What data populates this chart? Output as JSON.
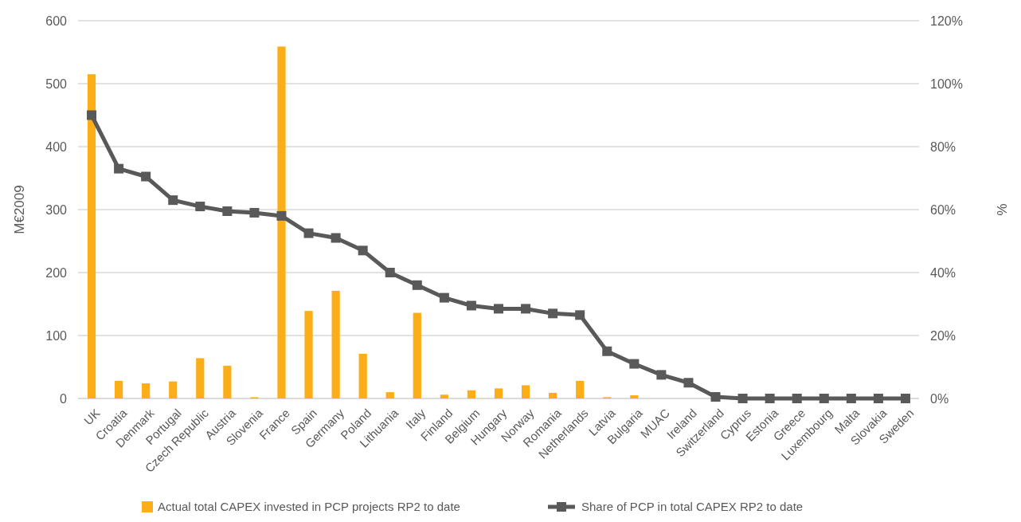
{
  "chart_data": {
    "type": "bar",
    "categories": [
      "UK",
      "Croatia",
      "Denmark",
      "Portugal",
      "Czech Republic",
      "Austria",
      "Slovenia",
      "France",
      "Spain",
      "Germany",
      "Poland",
      "Lithuania",
      "Italy",
      "Finland",
      "Belgium",
      "Hungary",
      "Norway",
      "Romania",
      "Netherlands",
      "Latvia",
      "Bulgaria",
      "MUAC",
      "Ireland",
      "Switzerland",
      "Cyprus",
      "Estonia",
      "Greece",
      "Luxembourg",
      "Malta",
      "Slovakia",
      "Sweden"
    ],
    "series": [
      {
        "name": "Actual total CAPEX invested in PCP projects RP2 to date",
        "color": "#fbae17",
        "values": [
          515,
          28,
          24,
          27,
          64,
          52,
          2,
          559,
          139,
          171,
          71,
          10,
          136,
          6,
          13,
          16,
          21,
          9,
          28,
          2,
          5,
          0,
          0,
          0,
          0,
          0,
          0,
          0,
          0,
          0,
          0
        ]
      },
      {
        "name": "Share of PCP in total CAPEX RP2 to date",
        "type": "line",
        "axis": "y2",
        "color": "#595959",
        "marker": "square",
        "values": [
          90,
          73,
          70.5,
          63,
          61,
          59.5,
          59,
          58,
          52.5,
          51,
          47,
          40,
          36,
          32,
          29.5,
          28.5,
          28.5,
          27,
          26.5,
          15,
          11,
          7.5,
          5,
          0.5,
          0,
          0,
          0,
          0,
          0,
          0,
          0
        ]
      }
    ],
    "ylabel": "M€2009",
    "y2label": "%",
    "ylim": [
      0,
      600
    ],
    "yticks": [
      0,
      100,
      200,
      300,
      400,
      500,
      600
    ],
    "y2lim": [
      0,
      120
    ],
    "y2ticks": [
      {
        "value": 0,
        "label": "0%"
      },
      {
        "value": 20,
        "label": "20%"
      },
      {
        "value": 40,
        "label": "40%"
      },
      {
        "value": 60,
        "label": "60%"
      },
      {
        "value": 80,
        "label": "80%"
      },
      {
        "value": 100,
        "label": "100%"
      },
      {
        "value": 120,
        "label": "120%"
      }
    ],
    "grid": "y",
    "legend": "bottom"
  }
}
